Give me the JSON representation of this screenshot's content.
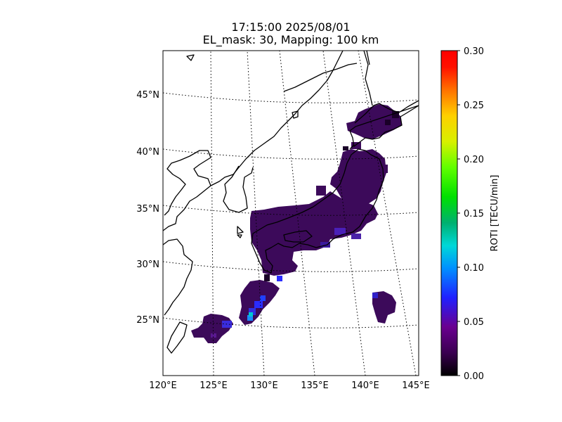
{
  "title": {
    "line1": "17:15:00 2025/08/01",
    "line2": "EL_mask: 30, Mapping: 100 km"
  },
  "map": {
    "lon_ticks": [
      "120°E",
      "125°E",
      "130°E",
      "135°E",
      "140°E",
      "145°E"
    ],
    "lat_ticks": [
      "25°N",
      "30°N",
      "35°N",
      "40°N",
      "45°N"
    ],
    "lon_range": [
      120,
      145
    ],
    "lat_range": [
      20,
      49
    ],
    "colors": {
      "coastline": "#000000",
      "graticule": "#000000",
      "background": "#ffffff",
      "roti_base": "#3c0a5a",
      "roti_dark": "#14001e",
      "roti_blue": "#2a2cff"
    }
  },
  "colorbar": {
    "label": "ROTI [TECU/min]",
    "ticks": [
      "0.00",
      "0.05",
      "0.10",
      "0.15",
      "0.20",
      "0.25",
      "0.30"
    ],
    "range": [
      0.0,
      0.3
    ],
    "colormap": "nipy_spectral-like (black→purple→blue→cyan→green→yellow→red)"
  }
}
